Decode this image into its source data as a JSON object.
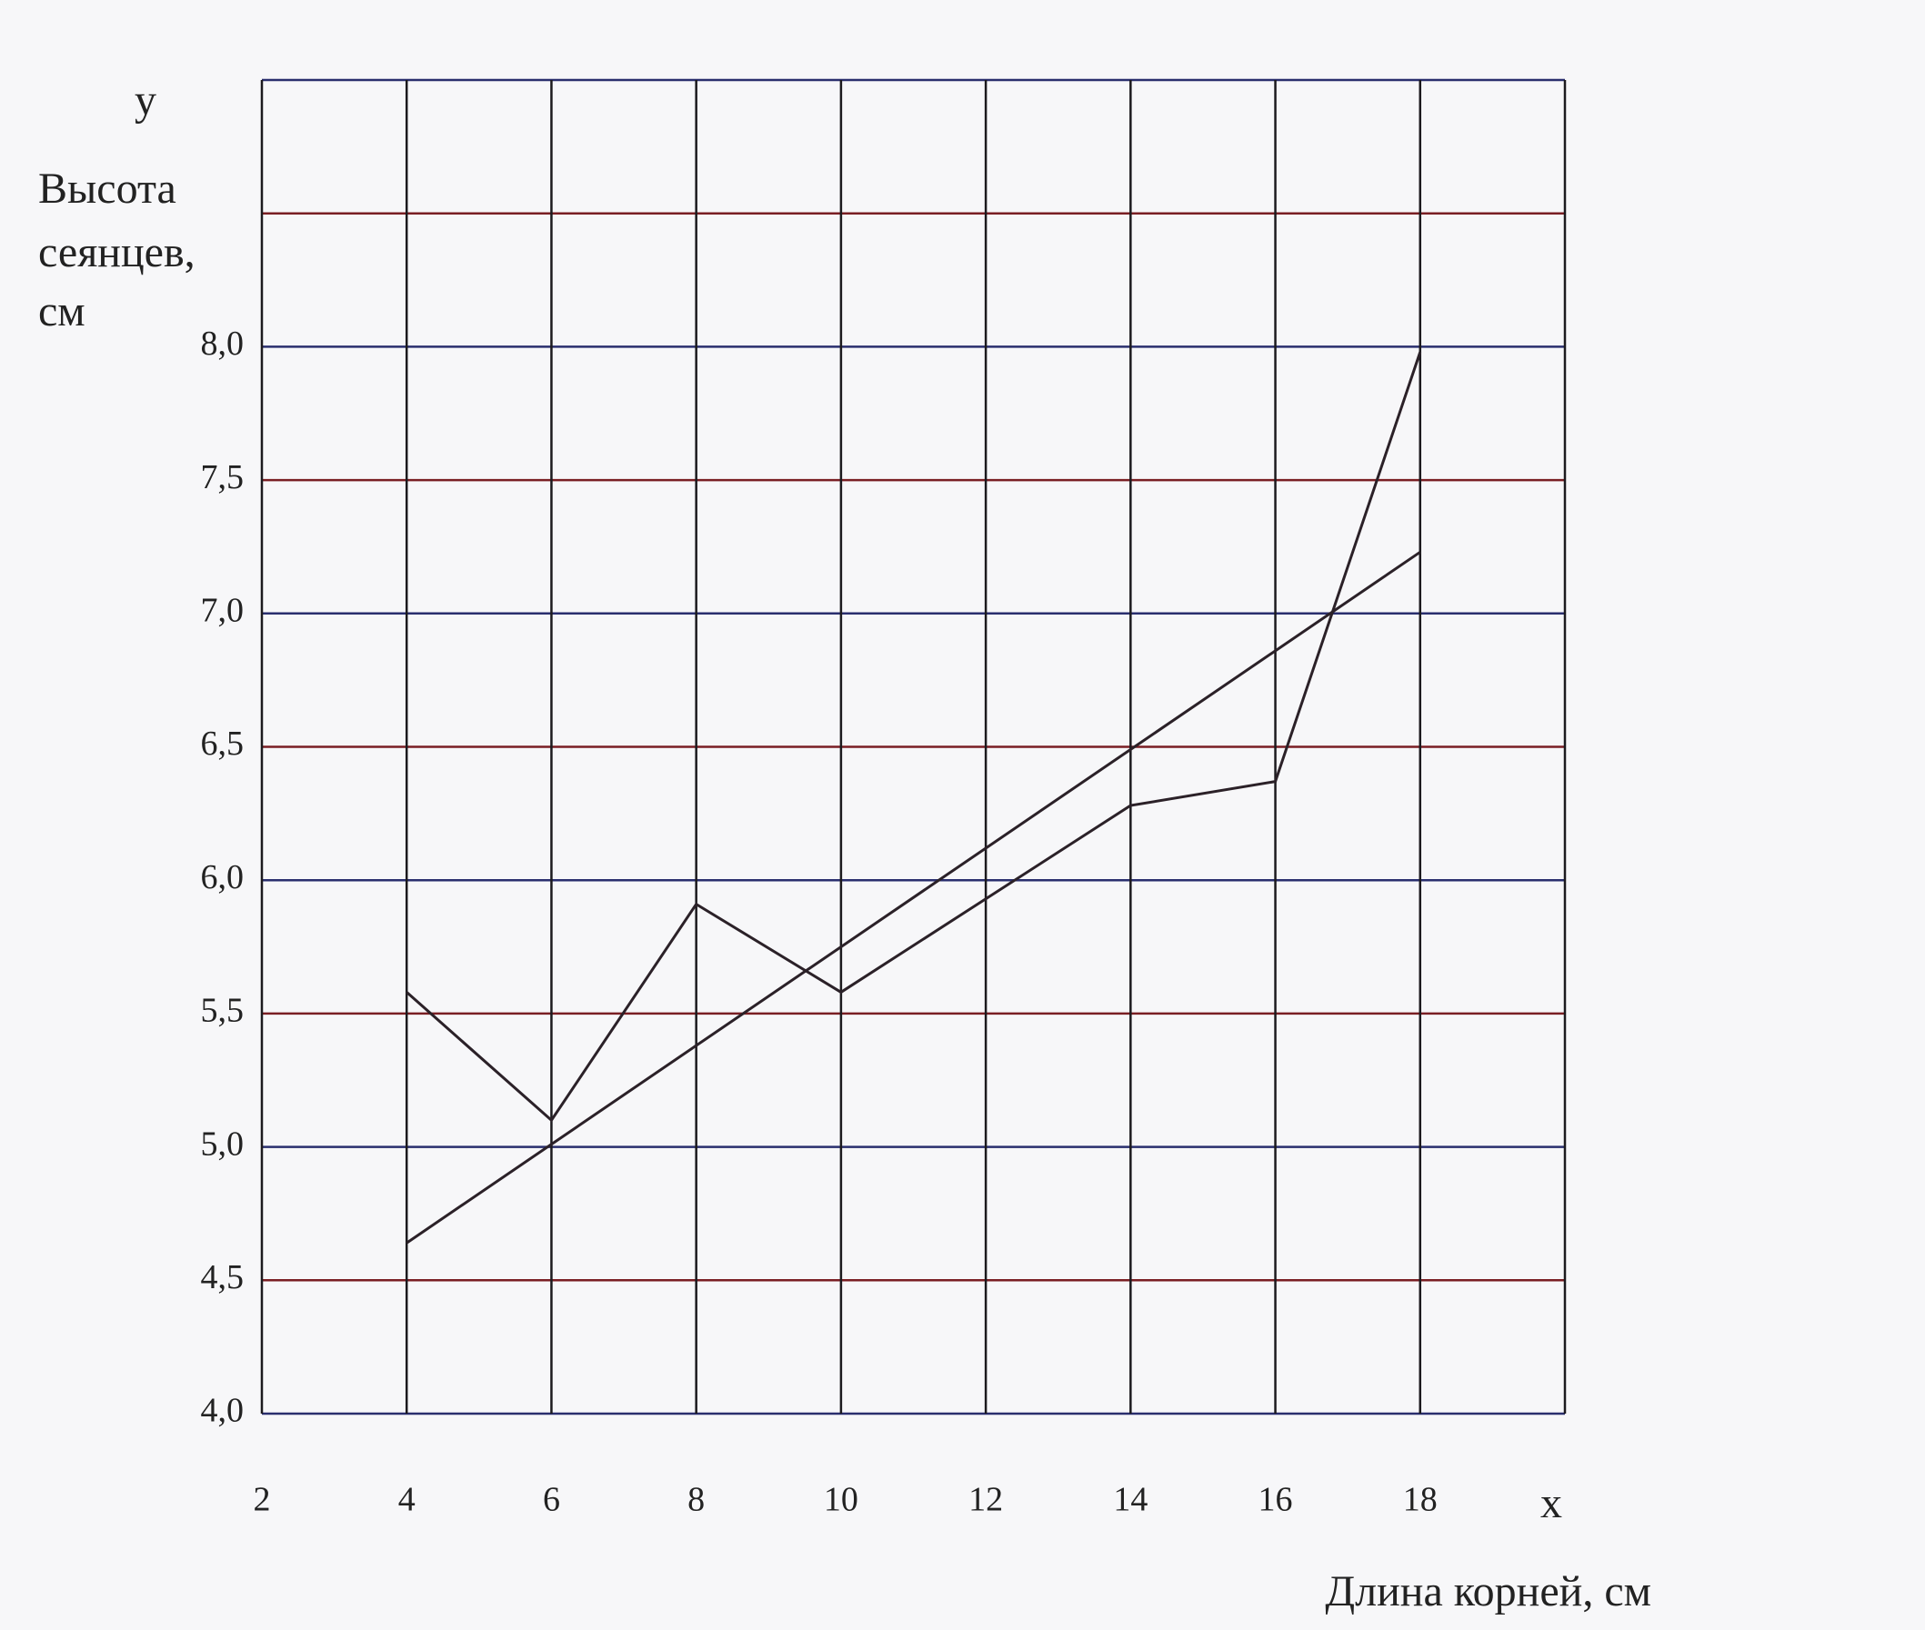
{
  "chart_data": {
    "type": "line",
    "y_symbol": "у",
    "ylabel": [
      "Высота",
      "сеянцев,",
      "см"
    ],
    "x_symbol": "х",
    "xlabel": "Длина корней, см",
    "xlim": [
      2,
      20
    ],
    "xticks": [
      2,
      4,
      6,
      8,
      10,
      12,
      14,
      16,
      18,
      {
        "value": 20,
        "label": null
      }
    ],
    "ylim": [
      4,
      9
    ],
    "yticks": [
      {
        "value": 4,
        "label": "4,0"
      },
      {
        "value": 4.5,
        "label": "4,5"
      },
      {
        "value": 5,
        "label": "5,0"
      },
      {
        "value": 5.5,
        "label": "5,5"
      },
      {
        "value": 6,
        "label": "6,0"
      },
      {
        "value": 6.5,
        "label": "6,5"
      },
      {
        "value": 7,
        "label": "7,0"
      },
      {
        "value": 7.5,
        "label": "7,5"
      },
      {
        "value": 8,
        "label": "8,0"
      },
      {
        "value": 8.5,
        "label": null
      },
      {
        "value": 9,
        "label": null
      }
    ],
    "grid": true,
    "grid_colors": [
      "#2a2f6e",
      "#7a1f24"
    ],
    "series": [
      {
        "color": "#2b2128",
        "x": [
          4,
          6,
          8,
          10,
          14,
          16,
          18
        ],
        "values": [
          5.58,
          5.1,
          5.91,
          5.58,
          6.28,
          6.37,
          7.98
        ]
      },
      {
        "color": "#2b2128",
        "x": [
          4,
          18
        ],
        "values": [
          4.64,
          7.23
        ]
      }
    ]
  }
}
